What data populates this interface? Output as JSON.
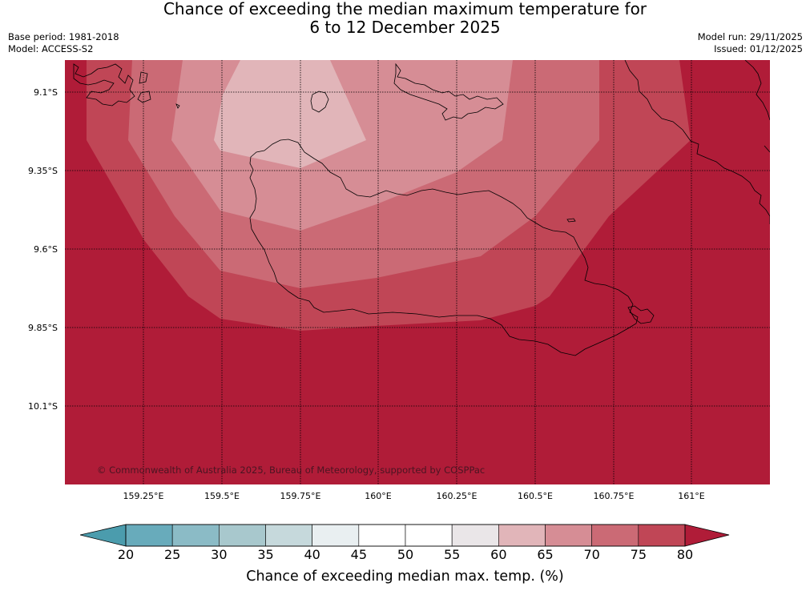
{
  "title": {
    "line1": "Chance of exceeding the median maximum temperature for",
    "line2": "6 to 12 December 2025"
  },
  "meta": {
    "base_period": "Base period: 1981-2018",
    "model": "Model: ACCESS-S2",
    "model_run": "Model run: 29/11/2025",
    "issued": "Issued: 01/12/2025"
  },
  "map": {
    "lat_labels": [
      "9.1°S",
      "9.35°S",
      "9.6°S",
      "9.85°S",
      "10.1°S"
    ],
    "lon_labels": [
      "159.25°E",
      "159.5°E",
      "159.75°E",
      "160°E",
      "160.25°E",
      "160.5°E",
      "160.75°E",
      "161°E"
    ],
    "credit": "© Commonwealth of Australia 2025, Bureau of Meteorology, supported by COSPPac",
    "fill_colors": {
      "80plus": "#b01c38",
      "75_80": "#c04656",
      "70_75": "#cb6a75",
      "65_70": "#d68d95",
      "60_65": "#e1b5b9"
    },
    "coastline_color": "#000000",
    "grid_color": "#000000"
  },
  "colorbar": {
    "ticks": [
      "20",
      "25",
      "30",
      "35",
      "40",
      "45",
      "50",
      "55",
      "60",
      "65",
      "70",
      "75",
      "80"
    ],
    "colors": [
      "#68abbb",
      "#8bbbc6",
      "#a8c8cd",
      "#c6d9dc",
      "#e9eff1",
      "#ffffff",
      "#ffffff",
      "#eae6e8",
      "#e1b5b9",
      "#d68d95",
      "#cb6a75",
      "#c04656"
    ],
    "under_color": "#4b9cad",
    "over_color": "#b01c38",
    "label": "Chance of exceeding median max. temp. (%)"
  }
}
